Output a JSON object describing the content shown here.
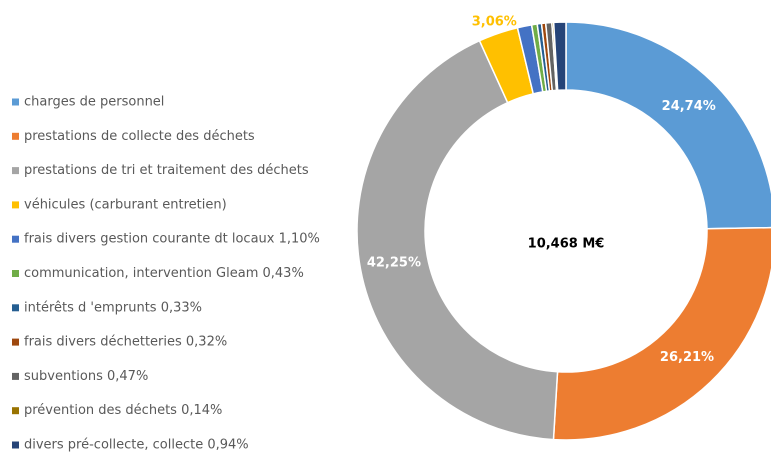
{
  "chart_data": {
    "type": "donut",
    "center_label": "10,468 M€",
    "categories": [
      "charges de personnel",
      "prestations de collecte des déchets",
      "prestations de tri et traitement des déchets",
      "véhicules (carburant entretien)",
      "frais divers gestion courante dt locaux 1,10%",
      "communication, intervention Gleam 0,43%",
      "intérêts d 'emprunts 0,33%",
      "frais divers déchetteries 0,32%",
      "subventions 0,47%",
      "prévention des déchets 0,14%",
      "divers pré-collecte, collecte 0,94%"
    ],
    "values": [
      24.74,
      26.21,
      42.25,
      3.06,
      1.1,
      0.43,
      0.33,
      0.32,
      0.47,
      0.14,
      0.94
    ],
    "value_labels": [
      "24,74%",
      "26,21%",
      "42,25%",
      "3,06%",
      null,
      null,
      null,
      null,
      null,
      null,
      null
    ],
    "colors": [
      "#5b9bd5",
      "#ed7d31",
      "#a5a5a5",
      "#ffc000",
      "#4472c4",
      "#70ad47",
      "#255e91",
      "#9e480e",
      "#636363",
      "#997300",
      "#264478"
    ],
    "legend": "left"
  }
}
